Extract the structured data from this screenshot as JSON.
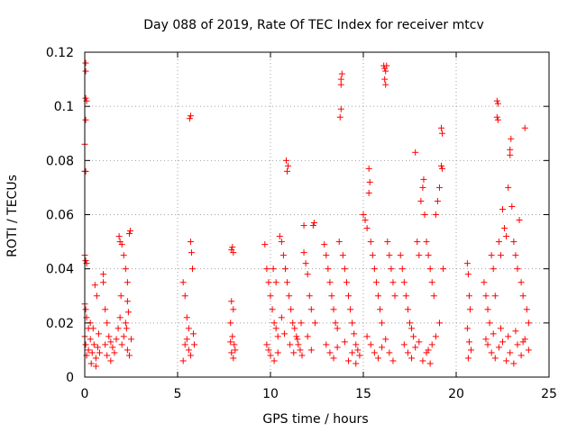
{
  "chart_data": {
    "type": "scatter",
    "title": "Day 088 of 2019, Rate Of TEC Index for receiver mtcv",
    "xlabel": "GPS time / hours",
    "ylabel": "ROTI / TECUs",
    "xlim": [
      0,
      25
    ],
    "ylim": [
      0,
      0.12
    ],
    "xticks": [
      0,
      5,
      10,
      15,
      20,
      25
    ],
    "xtick_labels": [
      "0",
      "5",
      "10",
      "15",
      "20",
      "25"
    ],
    "yticks": [
      0,
      0.02,
      0.04,
      0.06,
      0.08,
      0.1,
      0.12
    ],
    "ytick_labels": [
      "0",
      "0.02",
      "0.04",
      "0.06",
      "0.08",
      "0.1",
      "0.12"
    ],
    "grid": true,
    "marker": "+",
    "color": "#ff0000",
    "series": [
      {
        "name": "ROTI",
        "points": [
          [
            0.05,
            0.116
          ],
          [
            0.05,
            0.113
          ],
          [
            0.05,
            0.103
          ],
          [
            0.1,
            0.102
          ],
          [
            0.05,
            0.095
          ],
          [
            0.0,
            0.086
          ],
          [
            0.0,
            0.076
          ],
          [
            0.05,
            0.076
          ],
          [
            0.0,
            0.045
          ],
          [
            0.05,
            0.043
          ],
          [
            0.1,
            0.042
          ],
          [
            0.0,
            0.027
          ],
          [
            0.05,
            0.025
          ],
          [
            0.1,
            0.022
          ],
          [
            0.0,
            0.015
          ],
          [
            0.05,
            0.012
          ],
          [
            0.1,
            0.008
          ],
          [
            0.2,
            0.01
          ],
          [
            0.3,
            0.014
          ],
          [
            0.4,
            0.009
          ],
          [
            0.5,
            0.012
          ],
          [
            0.6,
            0.007
          ],
          [
            0.7,
            0.011
          ],
          [
            0.8,
            0.009
          ],
          [
            0.3,
            0.02
          ],
          [
            0.45,
            0.018
          ],
          [
            0.55,
            0.034
          ],
          [
            0.65,
            0.03
          ],
          [
            0.75,
            0.016
          ],
          [
            0.35,
            0.005
          ],
          [
            0.6,
            0.004
          ],
          [
            0.2,
            0.018
          ],
          [
            1.0,
            0.038
          ],
          [
            1.0,
            0.035
          ],
          [
            1.1,
            0.025
          ],
          [
            1.2,
            0.02
          ],
          [
            1.3,
            0.015
          ],
          [
            1.4,
            0.013
          ],
          [
            1.5,
            0.011
          ],
          [
            1.6,
            0.009
          ],
          [
            1.1,
            0.012
          ],
          [
            1.2,
            0.008
          ],
          [
            1.4,
            0.006
          ],
          [
            1.7,
            0.014
          ],
          [
            1.8,
            0.018
          ],
          [
            1.9,
            0.022
          ],
          [
            1.85,
            0.052
          ],
          [
            1.9,
            0.05
          ],
          [
            2.0,
            0.049
          ],
          [
            2.1,
            0.045
          ],
          [
            2.2,
            0.04
          ],
          [
            2.3,
            0.035
          ],
          [
            2.4,
            0.053
          ],
          [
            2.45,
            0.054
          ],
          [
            2.3,
            0.028
          ],
          [
            2.2,
            0.02
          ],
          [
            2.1,
            0.015
          ],
          [
            2.0,
            0.012
          ],
          [
            2.3,
            0.01
          ],
          [
            2.4,
            0.008
          ],
          [
            2.5,
            0.014
          ],
          [
            2.35,
            0.024
          ],
          [
            1.95,
            0.03
          ],
          [
            2.25,
            0.018
          ],
          [
            5.3,
            0.035
          ],
          [
            5.4,
            0.03
          ],
          [
            5.5,
            0.022
          ],
          [
            5.6,
            0.018
          ],
          [
            5.7,
            0.05
          ],
          [
            5.75,
            0.046
          ],
          [
            5.8,
            0.04
          ],
          [
            5.5,
            0.014
          ],
          [
            5.6,
            0.01
          ],
          [
            5.7,
            0.008
          ],
          [
            5.4,
            0.012
          ],
          [
            5.3,
            0.006
          ],
          [
            5.9,
            0.012
          ],
          [
            5.85,
            0.016
          ],
          [
            5.65,
            0.0955
          ],
          [
            5.7,
            0.0965
          ],
          [
            7.9,
            0.047
          ],
          [
            7.95,
            0.048
          ],
          [
            8.0,
            0.046
          ],
          [
            7.9,
            0.028
          ],
          [
            8.0,
            0.025
          ],
          [
            7.85,
            0.02
          ],
          [
            7.95,
            0.015
          ],
          [
            8.05,
            0.012
          ],
          [
            7.9,
            0.009
          ],
          [
            8.0,
            0.007
          ],
          [
            8.1,
            0.01
          ],
          [
            7.85,
            0.013
          ],
          [
            9.7,
            0.049
          ],
          [
            9.8,
            0.04
          ],
          [
            9.9,
            0.035
          ],
          [
            10.0,
            0.03
          ],
          [
            10.1,
            0.025
          ],
          [
            10.2,
            0.02
          ],
          [
            10.3,
            0.018
          ],
          [
            10.4,
            0.015
          ],
          [
            9.8,
            0.012
          ],
          [
            9.9,
            0.01
          ],
          [
            10.0,
            0.008
          ],
          [
            10.2,
            0.006
          ],
          [
            10.4,
            0.009
          ],
          [
            10.5,
            0.052
          ],
          [
            10.6,
            0.05
          ],
          [
            10.7,
            0.045
          ],
          [
            10.8,
            0.04
          ],
          [
            10.9,
            0.035
          ],
          [
            10.85,
            0.08
          ],
          [
            10.9,
            0.076
          ],
          [
            10.95,
            0.078
          ],
          [
            11.0,
            0.03
          ],
          [
            11.1,
            0.025
          ],
          [
            11.2,
            0.02
          ],
          [
            11.3,
            0.018
          ],
          [
            11.4,
            0.015
          ],
          [
            11.5,
            0.012
          ],
          [
            11.6,
            0.01
          ],
          [
            11.7,
            0.008
          ],
          [
            11.8,
            0.046
          ],
          [
            11.9,
            0.042
          ],
          [
            12.0,
            0.038
          ],
          [
            11.8,
            0.056
          ],
          [
            12.3,
            0.056
          ],
          [
            12.35,
            0.057
          ],
          [
            12.1,
            0.03
          ],
          [
            12.2,
            0.025
          ],
          [
            12.4,
            0.02
          ],
          [
            12.0,
            0.015
          ],
          [
            12.2,
            0.01
          ],
          [
            10.6,
            0.022
          ],
          [
            10.75,
            0.016
          ],
          [
            11.05,
            0.012
          ],
          [
            11.25,
            0.009
          ],
          [
            11.45,
            0.014
          ],
          [
            11.65,
            0.02
          ],
          [
            10.3,
            0.035
          ],
          [
            10.15,
            0.04
          ],
          [
            12.9,
            0.049
          ],
          [
            13.0,
            0.045
          ],
          [
            13.1,
            0.04
          ],
          [
            13.2,
            0.035
          ],
          [
            13.3,
            0.03
          ],
          [
            13.4,
            0.025
          ],
          [
            13.5,
            0.02
          ],
          [
            13.6,
            0.018
          ],
          [
            13.7,
            0.05
          ],
          [
            13.75,
            0.096
          ],
          [
            13.8,
            0.099
          ],
          [
            13.8,
            0.11
          ],
          [
            13.85,
            0.112
          ],
          [
            13.8,
            0.108
          ],
          [
            13.9,
            0.045
          ],
          [
            14.0,
            0.04
          ],
          [
            14.1,
            0.035
          ],
          [
            14.2,
            0.03
          ],
          [
            14.3,
            0.025
          ],
          [
            14.4,
            0.02
          ],
          [
            14.5,
            0.016
          ],
          [
            14.6,
            0.012
          ],
          [
            14.7,
            0.01
          ],
          [
            14.8,
            0.008
          ],
          [
            13.0,
            0.012
          ],
          [
            13.2,
            0.009
          ],
          [
            13.4,
            0.007
          ],
          [
            13.6,
            0.011
          ],
          [
            14.0,
            0.013
          ],
          [
            14.2,
            0.006
          ],
          [
            14.4,
            0.009
          ],
          [
            14.6,
            0.005
          ],
          [
            15.0,
            0.06
          ],
          [
            15.1,
            0.058
          ],
          [
            15.2,
            0.055
          ],
          [
            15.3,
            0.077
          ],
          [
            15.35,
            0.072
          ],
          [
            15.3,
            0.068
          ],
          [
            15.4,
            0.05
          ],
          [
            15.5,
            0.045
          ],
          [
            15.6,
            0.04
          ],
          [
            15.7,
            0.035
          ],
          [
            15.8,
            0.03
          ],
          [
            15.9,
            0.025
          ],
          [
            16.0,
            0.02
          ],
          [
            16.1,
            0.115
          ],
          [
            16.15,
            0.114
          ],
          [
            16.2,
            0.113
          ],
          [
            16.25,
            0.115
          ],
          [
            16.15,
            0.11
          ],
          [
            16.2,
            0.108
          ],
          [
            16.3,
            0.05
          ],
          [
            16.4,
            0.045
          ],
          [
            16.5,
            0.04
          ],
          [
            16.6,
            0.035
          ],
          [
            16.7,
            0.03
          ],
          [
            15.2,
            0.015
          ],
          [
            15.4,
            0.012
          ],
          [
            15.6,
            0.009
          ],
          [
            15.8,
            0.007
          ],
          [
            16.0,
            0.011
          ],
          [
            16.2,
            0.014
          ],
          [
            16.4,
            0.009
          ],
          [
            16.6,
            0.006
          ],
          [
            17.0,
            0.045
          ],
          [
            17.1,
            0.04
          ],
          [
            17.2,
            0.035
          ],
          [
            17.3,
            0.03
          ],
          [
            17.4,
            0.025
          ],
          [
            17.5,
            0.02
          ],
          [
            17.6,
            0.018
          ],
          [
            17.7,
            0.015
          ],
          [
            17.8,
            0.083
          ],
          [
            17.9,
            0.05
          ],
          [
            18.0,
            0.045
          ],
          [
            18.1,
            0.065
          ],
          [
            18.2,
            0.07
          ],
          [
            18.25,
            0.073
          ],
          [
            18.3,
            0.06
          ],
          [
            18.4,
            0.05
          ],
          [
            18.5,
            0.045
          ],
          [
            18.6,
            0.04
          ],
          [
            18.7,
            0.035
          ],
          [
            18.8,
            0.03
          ],
          [
            18.9,
            0.06
          ],
          [
            19.0,
            0.065
          ],
          [
            19.1,
            0.07
          ],
          [
            19.2,
            0.078
          ],
          [
            19.25,
            0.077
          ],
          [
            19.2,
            0.092
          ],
          [
            19.25,
            0.09
          ],
          [
            19.3,
            0.04
          ],
          [
            19.1,
            0.02
          ],
          [
            18.9,
            0.015
          ],
          [
            18.7,
            0.012
          ],
          [
            18.5,
            0.01
          ],
          [
            17.2,
            0.012
          ],
          [
            17.4,
            0.009
          ],
          [
            17.6,
            0.007
          ],
          [
            17.8,
            0.011
          ],
          [
            18.0,
            0.013
          ],
          [
            18.2,
            0.006
          ],
          [
            18.4,
            0.009
          ],
          [
            18.6,
            0.005
          ],
          [
            20.6,
            0.042
          ],
          [
            20.65,
            0.038
          ],
          [
            20.7,
            0.03
          ],
          [
            20.75,
            0.025
          ],
          [
            20.6,
            0.018
          ],
          [
            20.7,
            0.013
          ],
          [
            20.8,
            0.01
          ],
          [
            20.65,
            0.007
          ],
          [
            21.5,
            0.035
          ],
          [
            21.6,
            0.03
          ],
          [
            21.7,
            0.025
          ],
          [
            21.8,
            0.02
          ],
          [
            21.9,
            0.045
          ],
          [
            22.0,
            0.04
          ],
          [
            22.1,
            0.03
          ],
          [
            22.2,
            0.102
          ],
          [
            22.25,
            0.101
          ],
          [
            22.2,
            0.096
          ],
          [
            22.25,
            0.095
          ],
          [
            22.3,
            0.05
          ],
          [
            22.4,
            0.045
          ],
          [
            22.5,
            0.062
          ],
          [
            22.6,
            0.055
          ],
          [
            22.7,
            0.052
          ],
          [
            22.8,
            0.07
          ],
          [
            22.9,
            0.084
          ],
          [
            22.95,
            0.088
          ],
          [
            22.9,
            0.082
          ],
          [
            23.0,
            0.063
          ],
          [
            23.1,
            0.05
          ],
          [
            23.2,
            0.045
          ],
          [
            23.3,
            0.04
          ],
          [
            23.4,
            0.058
          ],
          [
            23.5,
            0.035
          ],
          [
            23.6,
            0.03
          ],
          [
            23.7,
            0.092
          ],
          [
            23.8,
            0.025
          ],
          [
            23.9,
            0.02
          ],
          [
            21.7,
            0.012
          ],
          [
            21.9,
            0.009
          ],
          [
            22.1,
            0.007
          ],
          [
            22.3,
            0.011
          ],
          [
            22.5,
            0.013
          ],
          [
            22.7,
            0.006
          ],
          [
            22.9,
            0.009
          ],
          [
            23.1,
            0.005
          ],
          [
            23.3,
            0.012
          ],
          [
            23.5,
            0.008
          ],
          [
            23.7,
            0.014
          ],
          [
            23.9,
            0.01
          ],
          [
            22.0,
            0.016
          ],
          [
            22.4,
            0.018
          ],
          [
            22.8,
            0.015
          ],
          [
            23.2,
            0.017
          ],
          [
            23.6,
            0.013
          ],
          [
            21.6,
            0.014
          ]
        ]
      }
    ]
  }
}
